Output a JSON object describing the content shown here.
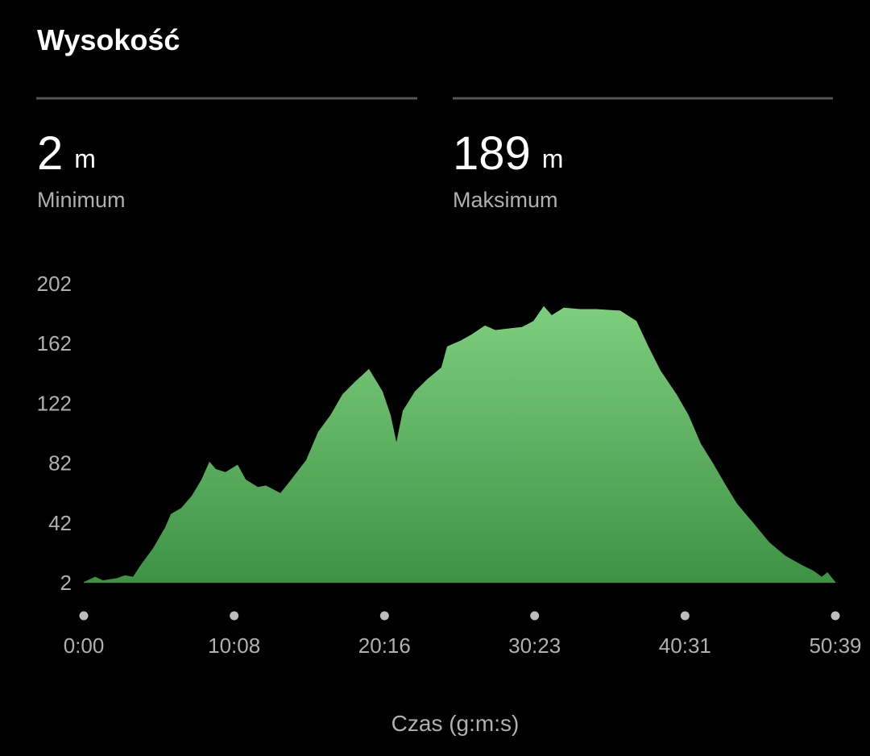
{
  "title": "Wysokość",
  "stats": [
    {
      "value": 2,
      "unit": "m",
      "label": "Minimum"
    },
    {
      "value": 189,
      "unit": "m",
      "label": "Maksimum"
    }
  ],
  "chart_data": {
    "type": "area",
    "x_label": "Czas (g:m:s)",
    "color_top": "#7dcf7e",
    "color_bottom": "#3e9244",
    "xlim": [
      0,
      3039
    ],
    "ylim": [
      2,
      202
    ],
    "yticks": [
      2,
      42,
      82,
      122,
      162,
      202
    ],
    "xticks": [
      {
        "value": 0,
        "label": "0:00"
      },
      {
        "value": 608,
        "label": "10:08"
      },
      {
        "value": 1216,
        "label": "20:16"
      },
      {
        "value": 1823,
        "label": "30:23"
      },
      {
        "value": 2431,
        "label": "40:31"
      },
      {
        "value": 3039,
        "label": "50:39"
      }
    ],
    "x": [
      0,
      46,
      78,
      134,
      166,
      199,
      231,
      280,
      329,
      352,
      394,
      436,
      476,
      508,
      534,
      573,
      622,
      655,
      704,
      736,
      795,
      834,
      899,
      948,
      997,
      1046,
      1094,
      1153,
      1208,
      1241,
      1264,
      1290,
      1339,
      1388,
      1446,
      1469,
      1524,
      1567,
      1622,
      1664,
      1713,
      1772,
      1818,
      1860,
      1892,
      1941,
      2007,
      2072,
      2169,
      2235,
      2283,
      2332,
      2397,
      2446,
      2495,
      2544,
      2593,
      2641,
      2707,
      2772,
      2837,
      2902,
      2951,
      2984,
      3007,
      3039
    ],
    "values": [
      2.5,
      6,
      3.6,
      5,
      7,
      6,
      14,
      25,
      39,
      48,
      52,
      60,
      71,
      83,
      78,
      76,
      81,
      71,
      66,
      67,
      62,
      70,
      84,
      103,
      114,
      128,
      136,
      145,
      130,
      114,
      96,
      117,
      130,
      138,
      146,
      160,
      164,
      168,
      174,
      171,
      172,
      173,
      177,
      187,
      181,
      186,
      185,
      185,
      184,
      177,
      160,
      144,
      128,
      114,
      95,
      82,
      68,
      55,
      42,
      29,
      20,
      14,
      10,
      6,
      9,
      2.5
    ]
  }
}
